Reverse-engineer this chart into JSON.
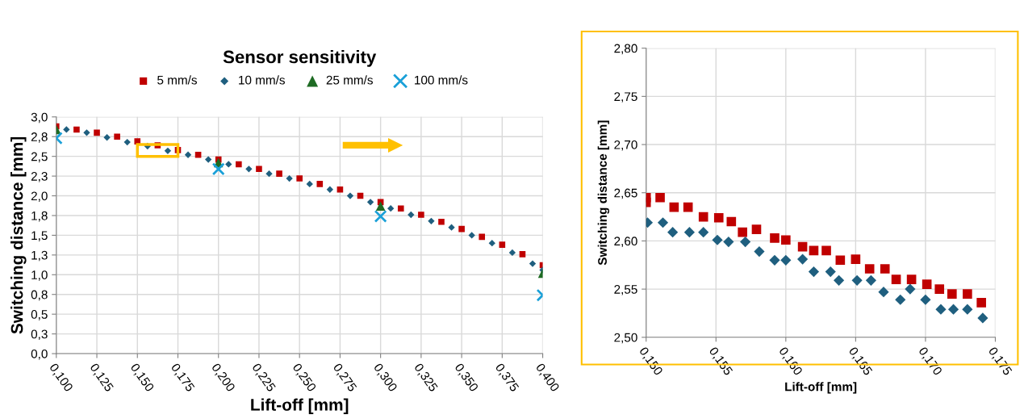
{
  "chart_data": [
    {
      "type": "scatter",
      "title": "Sensor sensitivity",
      "xlabel": "Lift-off [mm]",
      "ylabel": "Switching distance [mm]",
      "legend": "top",
      "grid": true,
      "xlim": [
        0.1,
        0.4
      ],
      "xticks": [
        {
          "value": 0.1,
          "label": "0,100"
        },
        {
          "value": 0.125,
          "label": "0,125"
        },
        {
          "value": 0.15,
          "label": "0,150"
        },
        {
          "value": 0.175,
          "label": "0,175"
        },
        {
          "value": 0.2,
          "label": "0,200"
        },
        {
          "value": 0.225,
          "label": "0,225"
        },
        {
          "value": 0.25,
          "label": "0,250"
        },
        {
          "value": 0.275,
          "label": "0,275"
        },
        {
          "value": 0.3,
          "label": "0,300"
        },
        {
          "value": 0.325,
          "label": "0,325"
        },
        {
          "value": 0.35,
          "label": "0,350"
        },
        {
          "value": 0.375,
          "label": "0,375"
        },
        {
          "value": 0.4,
          "label": "0,400"
        }
      ],
      "ylim": [
        0,
        3
      ],
      "yticks": [
        {
          "value": 0,
          "label": "0,0"
        },
        {
          "value": 0.25,
          "label": "0,3"
        },
        {
          "value": 0.5,
          "label": "0,5"
        },
        {
          "value": 0.75,
          "label": "0,8"
        },
        {
          "value": 1,
          "label": "1,0"
        },
        {
          "value": 1.25,
          "label": "1,3"
        },
        {
          "value": 1.5,
          "label": "1,5"
        },
        {
          "value": 1.75,
          "label": "1,8"
        },
        {
          "value": 2,
          "label": "2,0"
        },
        {
          "value": 2.25,
          "label": "2,3"
        },
        {
          "value": 2.5,
          "label": "2,5"
        },
        {
          "value": 2.75,
          "label": "2,8"
        },
        {
          "value": 3,
          "label": "3,0"
        }
      ],
      "series": [
        {
          "name": "5 mm/s",
          "color": "#c00000",
          "marker": "square",
          "x": [
            0.1,
            0.1125,
            0.125,
            0.1375,
            0.15,
            0.1625,
            0.175,
            0.1875,
            0.2,
            0.2125,
            0.225,
            0.2375,
            0.25,
            0.2625,
            0.275,
            0.2875,
            0.3,
            0.3125,
            0.325,
            0.3375,
            0.35,
            0.3625,
            0.375,
            0.3875,
            0.4
          ],
          "values": [
            2.88,
            2.84,
            2.8,
            2.75,
            2.69,
            2.64,
            2.58,
            2.52,
            2.46,
            2.4,
            2.34,
            2.28,
            2.22,
            2.15,
            2.08,
            2.0,
            1.92,
            1.84,
            1.76,
            1.67,
            1.58,
            1.48,
            1.38,
            1.26,
            1.12
          ]
        },
        {
          "name": "10 mm/s",
          "color": "#1f5f7f",
          "marker": "diamond",
          "x": [
            0.10625,
            0.11875,
            0.13125,
            0.14375,
            0.15625,
            0.16875,
            0.18125,
            0.19375,
            0.20625,
            0.21875,
            0.23125,
            0.24375,
            0.25625,
            0.26875,
            0.28125,
            0.29375,
            0.30625,
            0.31875,
            0.33125,
            0.34375,
            0.35625,
            0.36875,
            0.38125,
            0.39375,
            0.4
          ],
          "values": [
            2.84,
            2.8,
            2.74,
            2.68,
            2.63,
            2.57,
            2.52,
            2.46,
            2.4,
            2.34,
            2.28,
            2.22,
            2.15,
            2.08,
            2.0,
            1.92,
            1.84,
            1.76,
            1.68,
            1.6,
            1.5,
            1.4,
            1.28,
            1.14,
            1.06
          ]
        },
        {
          "name": "25 mm/s",
          "color": "#1e6b23",
          "marker": "triangle",
          "x": [
            0.1,
            0.2,
            0.3,
            0.4
          ],
          "values": [
            2.84,
            2.42,
            1.87,
            1.02
          ]
        },
        {
          "name": "100 mm/s",
          "color": "#1aa0d8",
          "marker": "cross",
          "x": [
            0.1,
            0.2,
            0.3,
            0.4
          ],
          "values": [
            2.73,
            2.34,
            1.74,
            0.74
          ]
        }
      ]
    },
    {
      "type": "scatter",
      "xlabel": "Lift-off [mm]",
      "ylabel": "Switching distance [mm]",
      "grid": true,
      "xlim": [
        0.15,
        0.175
      ],
      "xticks": [
        {
          "value": 0.15,
          "label": "0,150"
        },
        {
          "value": 0.155,
          "label": "0,155"
        },
        {
          "value": 0.16,
          "label": "0,160"
        },
        {
          "value": 0.165,
          "label": "0,165"
        },
        {
          "value": 0.17,
          "label": "0,170"
        },
        {
          "value": 0.175,
          "label": "0,175"
        }
      ],
      "ylim": [
        2.5,
        2.8
      ],
      "yticks": [
        {
          "value": 2.5,
          "label": "2,50"
        },
        {
          "value": 2.55,
          "label": "2,55"
        },
        {
          "value": 2.6,
          "label": "2,60"
        },
        {
          "value": 2.65,
          "label": "2,65"
        },
        {
          "value": 2.7,
          "label": "2,70"
        },
        {
          "value": 2.75,
          "label": "2,75"
        },
        {
          "value": 2.8,
          "label": "2,80"
        }
      ],
      "series": [
        {
          "color": "#c00000",
          "marker": "square",
          "x": [
            0.15,
            0.15,
            0.151,
            0.152,
            0.153,
            0.1541,
            0.1552,
            0.1561,
            0.1569,
            0.1579,
            0.1592,
            0.16,
            0.1612,
            0.162,
            0.1629,
            0.1639,
            0.165,
            0.166,
            0.1671,
            0.1679,
            0.169,
            0.1701,
            0.171,
            0.1719,
            0.173,
            0.174
          ],
          "values": [
            2.64,
            2.645,
            2.645,
            2.635,
            2.635,
            2.625,
            2.624,
            2.62,
            2.609,
            2.612,
            2.603,
            2.601,
            2.594,
            2.59,
            2.59,
            2.58,
            2.581,
            2.571,
            2.571,
            2.56,
            2.56,
            2.555,
            2.55,
            2.545,
            2.545,
            2.536
          ]
        },
        {
          "color": "#1f5f7f",
          "marker": "diamond",
          "x": [
            0.1501,
            0.1512,
            0.1519,
            0.1531,
            0.1541,
            0.1551,
            0.1559,
            0.1571,
            0.1581,
            0.1592,
            0.16,
            0.1612,
            0.162,
            0.1632,
            0.1638,
            0.1651,
            0.1661,
            0.167,
            0.1682,
            0.1689,
            0.17,
            0.1711,
            0.172,
            0.173,
            0.1741
          ],
          "values": [
            2.619,
            2.619,
            2.609,
            2.609,
            2.609,
            2.601,
            2.599,
            2.599,
            2.589,
            2.58,
            2.58,
            2.581,
            2.568,
            2.568,
            2.559,
            2.559,
            2.559,
            2.547,
            2.539,
            2.55,
            2.539,
            2.529,
            2.529,
            2.529,
            2.52
          ]
        }
      ]
    }
  ]
}
